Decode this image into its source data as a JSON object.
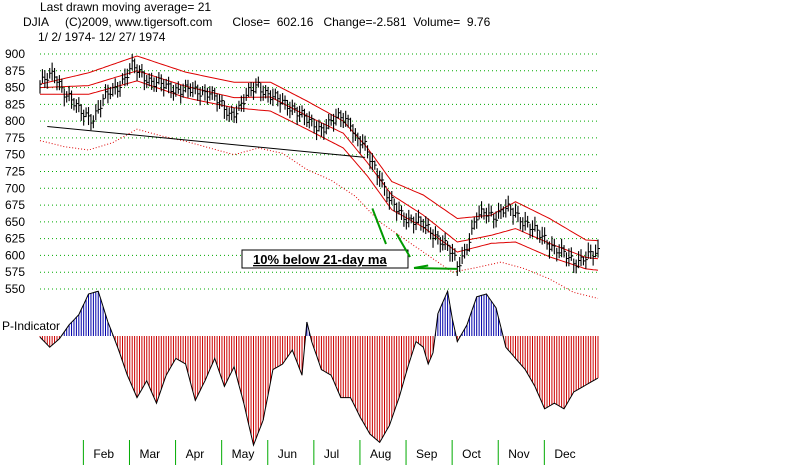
{
  "header": {
    "line1": "Last drawn moving average= 21",
    "line2": "DJIA     (C)2009, www.tigersoft.com      Close=  602.16   Change=-2.581  Volume=  9.76",
    "line3": "1/ 2/ 1974- 12/ 27/ 1974"
  },
  "chart_data": [
    {
      "type": "ohlc",
      "title": "",
      "yticks": [
        900,
        875,
        850,
        825,
        800,
        775,
        750,
        725,
        700,
        675,
        650,
        625,
        600,
        575,
        550
      ],
      "ylim": [
        550,
        900
      ],
      "grid": true,
      "months": [
        "Feb",
        "Mar",
        "Apr",
        "May",
        "Jun",
        "Jul",
        "Aug",
        "Sep",
        "Oct",
        "Nov",
        "Dec"
      ],
      "close_series": {
        "name": "DJIA",
        "points": [
          [
            0,
            855
          ],
          [
            6,
            870
          ],
          [
            10,
            845
          ],
          [
            16,
            815
          ],
          [
            22,
            805
          ],
          [
            28,
            840
          ],
          [
            34,
            860
          ],
          [
            38,
            880
          ],
          [
            42,
            870
          ],
          [
            46,
            860
          ],
          [
            52,
            850
          ],
          [
            58,
            848
          ],
          [
            64,
            843
          ],
          [
            70,
            845
          ],
          [
            74,
            825
          ],
          [
            78,
            810
          ],
          [
            82,
            820
          ],
          [
            86,
            840
          ],
          [
            90,
            855
          ],
          [
            94,
            840
          ],
          [
            98,
            830
          ],
          [
            104,
            822
          ],
          [
            110,
            800
          ],
          [
            116,
            790
          ],
          [
            120,
            797
          ],
          [
            124,
            806
          ],
          [
            128,
            801
          ],
          [
            130,
            775
          ],
          [
            134,
            760
          ],
          [
            136,
            745
          ],
          [
            140,
            720
          ],
          [
            144,
            680
          ],
          [
            148,
            665
          ],
          [
            152,
            655
          ],
          [
            156,
            648
          ],
          [
            160,
            640
          ],
          [
            164,
            628
          ],
          [
            168,
            610
          ],
          [
            170,
            600
          ],
          [
            172,
            585
          ],
          [
            176,
            615
          ],
          [
            180,
            655
          ],
          [
            184,
            665
          ],
          [
            188,
            660
          ],
          [
            192,
            668
          ],
          [
            196,
            663
          ],
          [
            200,
            650
          ],
          [
            204,
            635
          ],
          [
            208,
            625
          ],
          [
            212,
            612
          ],
          [
            216,
            600
          ],
          [
            220,
            590
          ],
          [
            224,
            598
          ],
          [
            228,
            600
          ],
          [
            230,
            602
          ]
        ]
      },
      "ma_bands": [
        {
          "name": "upper band",
          "points": [
            [
              0,
              855
            ],
            [
              20,
              872
            ],
            [
              40,
              897
            ],
            [
              60,
              873
            ],
            [
              80,
              858
            ],
            [
              95,
              858
            ],
            [
              110,
              830
            ],
            [
              125,
              800
            ],
            [
              135,
              760
            ],
            [
              145,
              710
            ],
            [
              158,
              690
            ],
            [
              172,
              655
            ],
            [
              186,
              660
            ],
            [
              196,
              680
            ],
            [
              210,
              655
            ],
            [
              225,
              623
            ],
            [
              230,
              622
            ]
          ]
        },
        {
          "name": "21-day ma",
          "points": [
            [
              0,
              850
            ],
            [
              20,
              853
            ],
            [
              40,
              875
            ],
            [
              60,
              852
            ],
            [
              80,
              835
            ],
            [
              95,
              836
            ],
            [
              110,
              808
            ],
            [
              125,
              782
            ],
            [
              135,
              738
            ],
            [
              145,
              690
            ],
            [
              158,
              660
            ],
            [
              172,
              620
            ],
            [
              186,
              630
            ],
            [
              196,
              640
            ],
            [
              210,
              618
            ],
            [
              225,
              597
            ],
            [
              230,
              595
            ]
          ]
        },
        {
          "name": "lower band",
          "points": [
            [
              0,
              840
            ],
            [
              20,
              840
            ],
            [
              40,
              860
            ],
            [
              60,
              835
            ],
            [
              80,
              820
            ],
            [
              95,
              815
            ],
            [
              110,
              788
            ],
            [
              125,
              760
            ],
            [
              135,
              718
            ],
            [
              145,
              668
            ],
            [
              158,
              642
            ],
            [
              172,
              605
            ],
            [
              186,
              618
            ],
            [
              196,
              620
            ],
            [
              210,
              598
            ],
            [
              225,
              580
            ],
            [
              230,
              578
            ]
          ]
        },
        {
          "name": "10% below 21-day ma",
          "points": [
            [
              0,
              771
            ],
            [
              10,
              762
            ],
            [
              20,
              757
            ],
            [
              30,
              768
            ],
            [
              40,
              788
            ],
            [
              50,
              778
            ],
            [
              60,
              770
            ],
            [
              70,
              760
            ],
            [
              80,
              750
            ],
            [
              90,
              760
            ],
            [
              100,
              752
            ],
            [
              110,
              728
            ],
            [
              120,
              712
            ],
            [
              130,
              688
            ],
            [
              140,
              650
            ],
            [
              150,
              625
            ],
            [
              160,
              600
            ],
            [
              170,
              575
            ],
            [
              180,
              582
            ],
            [
              190,
              590
            ],
            [
              200,
              580
            ],
            [
              210,
              565
            ],
            [
              220,
              545
            ],
            [
              230,
              536
            ]
          ]
        }
      ],
      "trendline": [
        [
          3,
          792
        ],
        [
          134,
          746
        ]
      ],
      "annotation": {
        "text": "10% below 21-day ma",
        "targets": [
          [
            137,
            670
          ],
          [
            147,
            632
          ],
          [
            160,
            585
          ],
          [
            172,
            580
          ]
        ]
      }
    },
    {
      "type": "bar",
      "title": "P-Indicator",
      "baseline": 0,
      "positive_color": "#0000aa",
      "negative_color": "#cc0000",
      "points": [
        [
          0,
          -2
        ],
        [
          4,
          -20
        ],
        [
          8,
          -5
        ],
        [
          12,
          20
        ],
        [
          16,
          38
        ],
        [
          20,
          75
        ],
        [
          24,
          80
        ],
        [
          28,
          25
        ],
        [
          32,
          -20
        ],
        [
          36,
          -70
        ],
        [
          40,
          -110
        ],
        [
          44,
          -80
        ],
        [
          48,
          -120
        ],
        [
          52,
          -70
        ],
        [
          56,
          -40
        ],
        [
          60,
          -50
        ],
        [
          64,
          -115
        ],
        [
          68,
          -80
        ],
        [
          72,
          -40
        ],
        [
          76,
          -90
        ],
        [
          80,
          -55
        ],
        [
          84,
          -120
        ],
        [
          88,
          -195
        ],
        [
          92,
          -150
        ],
        [
          96,
          -60
        ],
        [
          100,
          -50
        ],
        [
          104,
          -25
        ],
        [
          108,
          -70
        ],
        [
          110,
          25
        ],
        [
          112,
          -10
        ],
        [
          116,
          -60
        ],
        [
          120,
          -70
        ],
        [
          124,
          -110
        ],
        [
          128,
          -110
        ],
        [
          132,
          -145
        ],
        [
          136,
          -175
        ],
        [
          140,
          -190
        ],
        [
          144,
          -160
        ],
        [
          148,
          -110
        ],
        [
          152,
          -50
        ],
        [
          155,
          -10
        ],
        [
          158,
          -20
        ],
        [
          160,
          -50
        ],
        [
          162,
          -30
        ],
        [
          164,
          40
        ],
        [
          168,
          80
        ],
        [
          170,
          30
        ],
        [
          172,
          -10
        ],
        [
          176,
          20
        ],
        [
          180,
          70
        ],
        [
          184,
          75
        ],
        [
          188,
          50
        ],
        [
          192,
          -20
        ],
        [
          196,
          -40
        ],
        [
          200,
          -60
        ],
        [
          204,
          -90
        ],
        [
          208,
          -130
        ],
        [
          212,
          -120
        ],
        [
          216,
          -130
        ],
        [
          220,
          -100
        ],
        [
          224,
          -90
        ],
        [
          228,
          -80
        ],
        [
          230,
          -75
        ]
      ]
    }
  ]
}
